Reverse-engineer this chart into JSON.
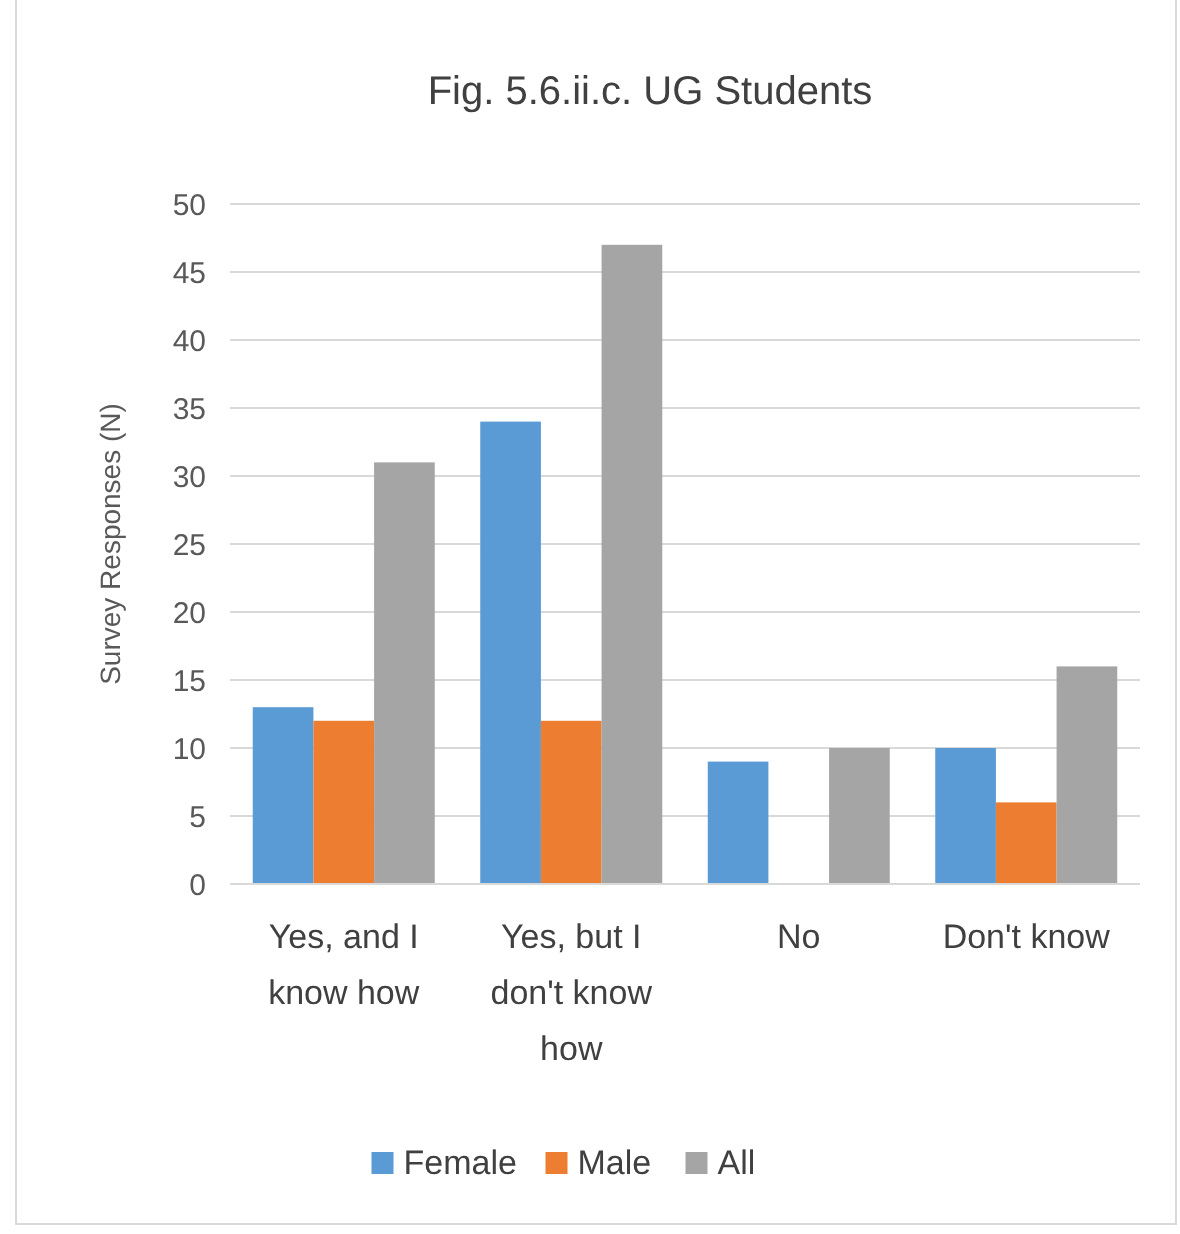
{
  "chart_data": {
    "type": "bar",
    "title": "Fig. 5.6.ii.c. UG Students",
    "ylabel": "Survey Responses (N)",
    "categories": [
      "Yes, and I know how",
      "Yes, but I don't know how",
      "No",
      "Don't know"
    ],
    "series": [
      {
        "name": "Female",
        "color": "#5b9bd5",
        "values": [
          13,
          34,
          9,
          10
        ]
      },
      {
        "name": "Male",
        "color": "#ed7d31",
        "values": [
          12,
          12,
          null,
          6
        ]
      },
      {
        "name": "All",
        "color": "#a5a5a5",
        "values": [
          31,
          47,
          10,
          16
        ]
      }
    ],
    "ylim": [
      0,
      50
    ],
    "yticks": [
      0,
      5,
      10,
      15,
      20,
      25,
      30,
      35,
      40,
      45,
      50
    ],
    "grid": "y",
    "legend": "bottom"
  }
}
